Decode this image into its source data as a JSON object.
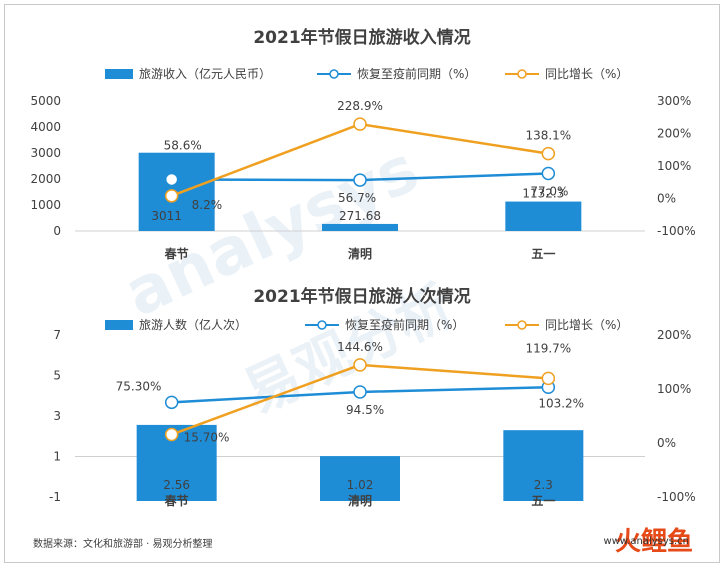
{
  "footer": {
    "source": "数据来源：文化和旅游部 · 易观分析整理",
    "url": "www.analysys.cn",
    "logo_text": "火鲤鱼"
  },
  "colors": {
    "bar": "#1f8dd6",
    "recovery": "#1f8dd6",
    "growth": "#f0a020"
  },
  "chart_data": [
    {
      "type": "bar",
      "title": "2021年节假日旅游收入情况",
      "categories": [
        "春节",
        "清明",
        "五一"
      ],
      "y_ticks": [
        "5000",
        "4000",
        "3000",
        "2000",
        "1000",
        "0"
      ],
      "y2_ticks": [
        "300%",
        "200%",
        "100%",
        "0%",
        "-100%"
      ],
      "ylim": [
        0,
        5000
      ],
      "y2lim": [
        -100,
        300
      ],
      "series": [
        {
          "name": "旅游收入（亿元人民币）",
          "kind": "bar",
          "values": [
            3011,
            271.68,
            1132.3
          ],
          "labels": [
            "3011",
            "271.68",
            "1132.3"
          ]
        },
        {
          "name": "恢复至疫前同期（%）",
          "kind": "line",
          "axis": "right",
          "values": [
            58.6,
            56.7,
            77.0
          ],
          "labels": [
            "58.6%",
            "56.7%",
            "77.0%"
          ]
        },
        {
          "name": "同比增长（%）",
          "kind": "line",
          "axis": "right",
          "values": [
            8.2,
            228.9,
            138.1
          ],
          "labels": [
            "8.2%",
            "228.9%",
            "138.1%"
          ]
        }
      ]
    },
    {
      "type": "bar",
      "title": "2021年节假日旅游人次情况",
      "categories": [
        "春节",
        "清明",
        "五一"
      ],
      "y_ticks": [
        "7",
        "5",
        "3",
        "1",
        "-1"
      ],
      "y2_ticks": [
        "200%",
        "100%",
        "0%",
        "-100%"
      ],
      "ylim": [
        -1,
        7
      ],
      "y2lim": [
        -100,
        200
      ],
      "series": [
        {
          "name": "旅游人数（亿人次）",
          "kind": "bar",
          "values": [
            2.56,
            1.02,
            2.3
          ],
          "labels": [
            "2.56",
            "1.02",
            "2.3"
          ]
        },
        {
          "name": "恢复至疫前同期（%）",
          "kind": "line",
          "axis": "right",
          "values": [
            75.3,
            94.5,
            103.2
          ],
          "labels": [
            "75.30%",
            "94.5%",
            "103.2%"
          ]
        },
        {
          "name": "同比增长（%）",
          "kind": "line",
          "axis": "right",
          "values": [
            15.7,
            144.6,
            119.7
          ],
          "labels": [
            "15.70%",
            "144.6%",
            "119.7%"
          ]
        }
      ]
    }
  ]
}
